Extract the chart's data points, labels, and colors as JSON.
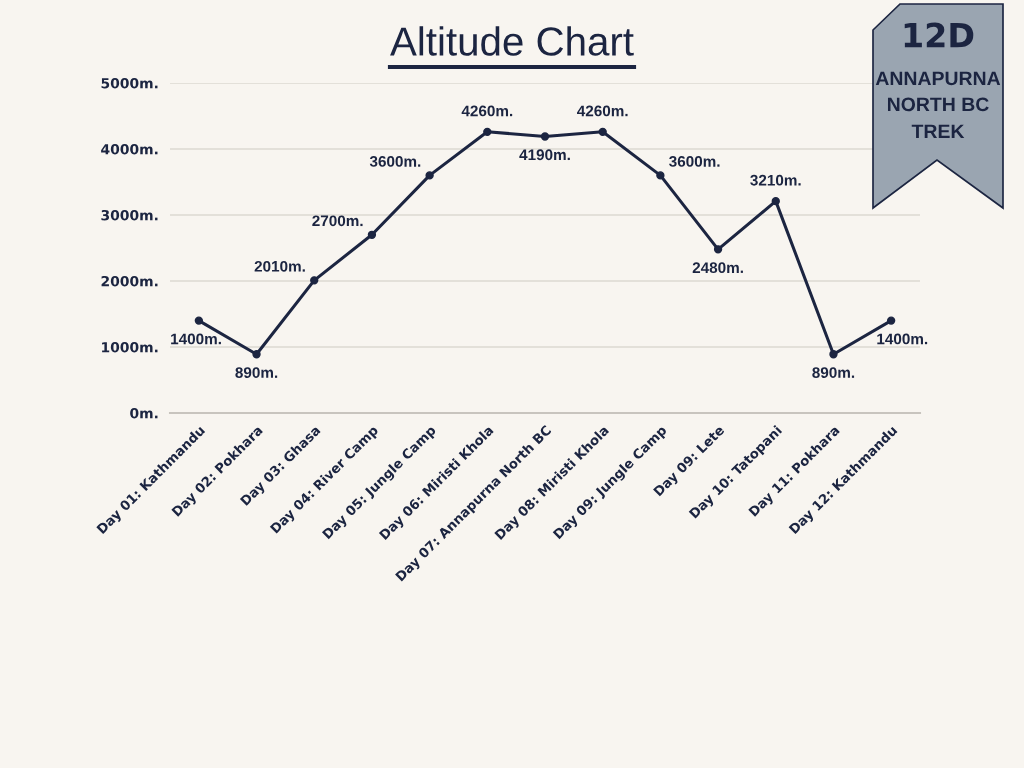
{
  "chart_data": {
    "type": "line",
    "title": "Altitude Chart",
    "categories": [
      "Day 01: Kathmandu",
      "Day 02: Pokhara",
      "Day 03: Ghasa",
      "Day 04: River Camp",
      "Day 05: Jungle Camp",
      "Day 06: Miristi Khola",
      "Day 07: Annapurna North BC",
      "Day 08: Miristi Khola",
      "Day 09: Jungle Camp",
      "Day 09: Lete",
      "Day 10: Tatopani",
      "Day 11: Pokhara",
      "Day 12: Kathmandu"
    ],
    "values": [
      1400,
      890,
      2010,
      2700,
      3600,
      4260,
      4190,
      4260,
      3600,
      2480,
      3210,
      890,
      1400
    ],
    "value_labels": [
      "1400m.",
      "890m.",
      "2010m.",
      "2700m.",
      "3600m.",
      "4260m.",
      "4190m.",
      "4260m.",
      "3600m.",
      "2480m.",
      "3210m.",
      "890m.",
      "1400m."
    ],
    "color": "#1c2541",
    "ylim": [
      0,
      5000
    ],
    "yticks": [
      {
        "value": 0,
        "label": "0m."
      },
      {
        "value": 1000,
        "label": "1000m."
      },
      {
        "value": 2000,
        "label": "2000m."
      },
      {
        "value": 3000,
        "label": "3000m."
      },
      {
        "value": 4000,
        "label": "4000m."
      },
      {
        "value": 5000,
        "label": "5000m."
      }
    ],
    "grid": "y",
    "marker": "circle",
    "line_style": "solid",
    "annotations": [
      "12D",
      "ANNAPURNA",
      "NORTH BC",
      "TREK"
    ]
  }
}
